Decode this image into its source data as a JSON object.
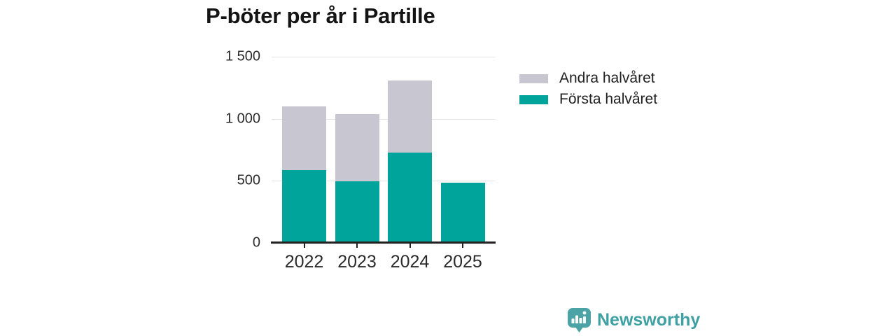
{
  "chart_data": {
    "type": "bar",
    "stacked": true,
    "title": "P-böter per år i Partille",
    "categories": [
      "2022",
      "2023",
      "2024",
      "2025"
    ],
    "series": [
      {
        "name": "Första halvåret",
        "color": "#00a49a",
        "values": [
          585,
          495,
          725,
          485
        ]
      },
      {
        "name": "Andra halvåret",
        "color": "#c8c6d0",
        "values": [
          515,
          540,
          585,
          0
        ]
      }
    ],
    "xlabel": "",
    "ylabel": "",
    "ylim": [
      0,
      1500
    ],
    "yticks": [
      0,
      500,
      1000,
      1500
    ],
    "ytick_labels": [
      "0",
      "500",
      "1 000",
      "1 500"
    ],
    "grid": true,
    "legend_position": "right"
  },
  "legend": {
    "items": [
      {
        "label": "Andra halvåret",
        "color": "#c8c6d0"
      },
      {
        "label": "Första halvåret",
        "color": "#00a49a"
      }
    ]
  },
  "branding": {
    "logo_text": "Newsworthy",
    "logo_color": "#3fa0a2",
    "icon_color": "#4ba3a5"
  },
  "colors": {
    "first_half_teal": "#00a49a",
    "second_half_gray": "#c8c6d0",
    "gridline": "#e3e3e5",
    "axis": "#222222",
    "tick_text": "#2b2b2b",
    "title_text": "#141414",
    "background": "#ffffff"
  }
}
